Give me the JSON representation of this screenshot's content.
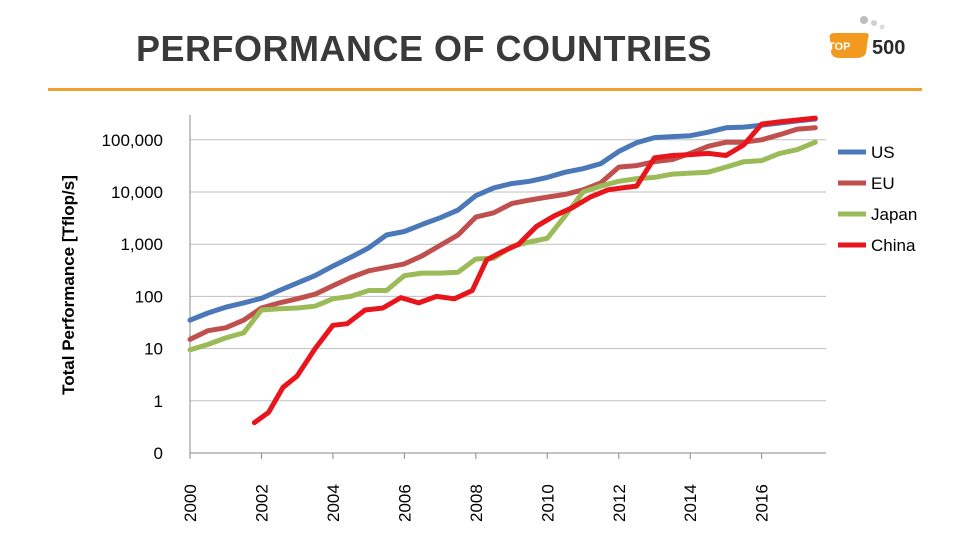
{
  "page": {
    "title": "PERFORMANCE OF COUNTRIES",
    "accent_color": "#f0a030",
    "logo": {
      "top": "TOP",
      "number": "500"
    }
  },
  "chart_data": {
    "type": "line",
    "title": "PERFORMANCE OF COUNTRIES",
    "xlabel": "",
    "ylabel": "Total Performance  [Tflop/s]",
    "yscale": "log",
    "ylim": [
      0.1,
      300000
    ],
    "xlim": [
      2000,
      2017.8
    ],
    "yticks": [
      {
        "value": 0.1,
        "label": "0"
      },
      {
        "value": 1,
        "label": "1"
      },
      {
        "value": 10,
        "label": "10"
      },
      {
        "value": 100,
        "label": "100"
      },
      {
        "value": 1000,
        "label": "1,000"
      },
      {
        "value": 10000,
        "label": "10,000"
      },
      {
        "value": 100000,
        "label": "100,000"
      }
    ],
    "xticks": [
      2000,
      2002,
      2004,
      2006,
      2008,
      2010,
      2012,
      2014,
      2016
    ],
    "grid": true,
    "legend_position": "right",
    "series": [
      {
        "name": "US",
        "color": "#4a78b8",
        "x": [
          2000,
          2000.5,
          2001,
          2001.5,
          2002,
          2002.5,
          2003,
          2003.5,
          2004,
          2004.5,
          2005,
          2005.5,
          2006,
          2006.5,
          2007,
          2007.5,
          2008,
          2008.5,
          2009,
          2009.5,
          2010,
          2010.5,
          2011,
          2011.5,
          2012,
          2012.5,
          2013,
          2013.5,
          2014,
          2014.5,
          2015,
          2015.5,
          2016,
          2016.5,
          2017,
          2017.5
        ],
        "y": [
          35,
          48,
          62,
          75,
          92,
          130,
          180,
          250,
          380,
          560,
          850,
          1500,
          1750,
          2400,
          3200,
          4500,
          8500,
          12000,
          14500,
          16000,
          19000,
          24000,
          28000,
          35000,
          60000,
          88000,
          110000,
          115000,
          120000,
          140000,
          170000,
          175000,
          190000,
          210000,
          230000,
          250000
        ]
      },
      {
        "name": "EU",
        "color": "#c0504d",
        "x": [
          2000,
          2000.5,
          2001,
          2001.5,
          2002,
          2002.5,
          2003,
          2003.5,
          2004,
          2004.5,
          2005,
          2005.5,
          2006,
          2006.5,
          2007,
          2007.5,
          2008,
          2008.5,
          2009,
          2009.5,
          2010,
          2010.5,
          2011,
          2011.5,
          2012,
          2012.5,
          2013,
          2013.5,
          2014,
          2014.5,
          2015,
          2015.5,
          2016,
          2016.5,
          2017,
          2017.5
        ],
        "y": [
          15,
          22,
          25,
          35,
          60,
          75,
          90,
          110,
          160,
          230,
          310,
          360,
          420,
          600,
          950,
          1500,
          3300,
          4000,
          6000,
          7000,
          8000,
          9000,
          11000,
          15000,
          30000,
          32000,
          38000,
          42000,
          55000,
          75000,
          90000,
          90000,
          100000,
          125000,
          160000,
          170000
        ]
      },
      {
        "name": "Japan",
        "color": "#9bbb59",
        "x": [
          2000,
          2000.5,
          2001,
          2001.5,
          2002,
          2002.5,
          2003,
          2003.5,
          2004,
          2004.5,
          2005,
          2005.5,
          2006,
          2006.5,
          2007,
          2007.5,
          2008,
          2008.5,
          2009,
          2009.5,
          2010,
          2010.5,
          2011,
          2011.5,
          2012,
          2012.5,
          2013,
          2013.5,
          2014,
          2014.5,
          2015,
          2015.5,
          2016,
          2016.5,
          2017,
          2017.5
        ],
        "y": [
          9.5,
          12,
          16,
          20,
          55,
          58,
          60,
          65,
          90,
          100,
          130,
          130,
          250,
          280,
          280,
          290,
          520,
          540,
          900,
          1100,
          1300,
          3500,
          10000,
          13000,
          16000,
          18000,
          19000,
          22000,
          23000,
          24000,
          30000,
          38000,
          40000,
          55000,
          65000,
          90000
        ]
      },
      {
        "name": "China",
        "color": "#e8161c",
        "x": [
          2001.8,
          2002.2,
          2002.6,
          2003,
          2003.5,
          2004,
          2004.4,
          2004.9,
          2005.4,
          2005.9,
          2006.4,
          2006.9,
          2007.4,
          2007.9,
          2008.3,
          2008.7,
          2009.2,
          2009.7,
          2010.2,
          2010.7,
          2011.2,
          2011.7,
          2012.1,
          2012.5,
          2013,
          2013.5,
          2014,
          2014.5,
          2015,
          2015.5,
          2016,
          2016.5,
          2017,
          2017.5
        ],
        "y": [
          0.38,
          0.6,
          1.8,
          3,
          10,
          28,
          30,
          55,
          60,
          95,
          75,
          100,
          90,
          130,
          500,
          700,
          1000,
          2200,
          3500,
          5000,
          8000,
          11000,
          12000,
          13000,
          45000,
          50000,
          52000,
          55000,
          50000,
          80000,
          200000,
          220000,
          240000,
          260000
        ]
      }
    ]
  }
}
